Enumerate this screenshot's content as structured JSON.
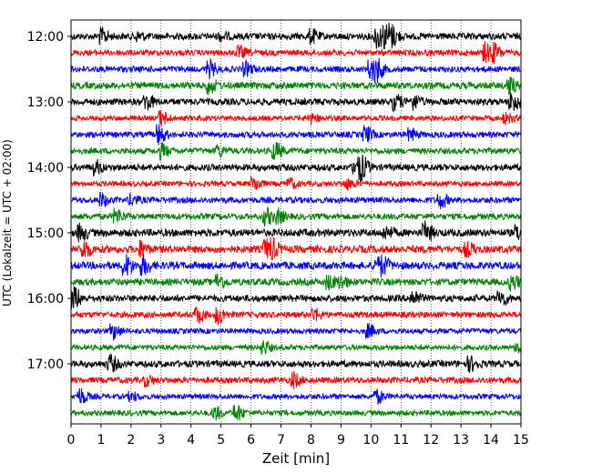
{
  "chart_data": {
    "type": "line",
    "subtype": "helicorder",
    "xlabel": "Zeit  [min]",
    "ylabel": "UTC (Lokalzeit = UTC + 02:00)",
    "xlim": [
      0,
      15
    ],
    "x_ticks": [
      "0",
      "1",
      "2",
      "3",
      "4",
      "5",
      "6",
      "7",
      "8",
      "9",
      "10",
      "11",
      "12",
      "13",
      "14",
      "15"
    ],
    "y_tick_labels": [
      "12:00",
      "13:00",
      "14:00",
      "15:00",
      "16:00",
      "17:00"
    ],
    "grid": "vertical dotted lines at each minute",
    "trace_colors": [
      "#000000",
      "#ff0000",
      "#0000ff",
      "#008000"
    ],
    "traces": [
      {
        "start": "12:00",
        "color": "#000000",
        "amp": 0.45,
        "events": [
          [
            1.0,
            0.9
          ],
          [
            2.2,
            0.5
          ],
          [
            5.0,
            0.4
          ],
          [
            8.0,
            0.8
          ],
          [
            10.2,
            1.4
          ],
          [
            10.5,
            1.1
          ],
          [
            10.7,
            0.9
          ]
        ]
      },
      {
        "start": "12:15",
        "color": "#ff0000",
        "amp": 0.4,
        "events": [
          [
            5.6,
            0.7
          ],
          [
            13.8,
            1.2
          ],
          [
            14.1,
            0.9
          ]
        ]
      },
      {
        "start": "12:30",
        "color": "#0000ff",
        "amp": 0.4,
        "events": [
          [
            4.6,
            1.0
          ],
          [
            5.8,
            0.8
          ],
          [
            10.0,
            1.3
          ],
          [
            10.2,
            1.0
          ]
        ]
      },
      {
        "start": "12:45",
        "color": "#008000",
        "amp": 0.45,
        "events": [
          [
            4.6,
            0.9
          ],
          [
            14.6,
            1.0
          ]
        ]
      },
      {
        "start": "13:00",
        "color": "#000000",
        "amp": 0.45,
        "events": [
          [
            2.5,
            1.0
          ],
          [
            10.8,
            0.9
          ],
          [
            11.4,
            0.9
          ],
          [
            14.7,
            1.2
          ]
        ]
      },
      {
        "start": "13:15",
        "color": "#ff0000",
        "amp": 0.35,
        "events": [
          [
            3.0,
            0.9
          ],
          [
            8.0,
            0.6
          ],
          [
            14.5,
            0.6
          ]
        ]
      },
      {
        "start": "13:30",
        "color": "#0000ff",
        "amp": 0.4,
        "events": [
          [
            2.9,
            1.2
          ],
          [
            9.8,
            1.0
          ],
          [
            11.3,
            0.7
          ]
        ]
      },
      {
        "start": "13:45",
        "color": "#008000",
        "amp": 0.4,
        "events": [
          [
            3.0,
            0.9
          ],
          [
            4.9,
            0.7
          ],
          [
            6.8,
            1.0
          ]
        ]
      },
      {
        "start": "14:00",
        "color": "#000000",
        "amp": 0.45,
        "events": [
          [
            0.8,
            0.8
          ],
          [
            9.5,
            1.3
          ],
          [
            9.7,
            0.9
          ]
        ]
      },
      {
        "start": "14:15",
        "color": "#ff0000",
        "amp": 0.35,
        "events": [
          [
            6.1,
            0.8
          ],
          [
            7.3,
            0.6
          ],
          [
            9.2,
            0.6
          ]
        ]
      },
      {
        "start": "14:30",
        "color": "#0000ff",
        "amp": 0.4,
        "events": [
          [
            1.0,
            0.8
          ],
          [
            2.0,
            0.6
          ],
          [
            12.3,
            0.9
          ]
        ]
      },
      {
        "start": "14:45",
        "color": "#008000",
        "amp": 0.4,
        "events": [
          [
            1.5,
            0.9
          ],
          [
            6.5,
            1.0
          ],
          [
            6.9,
            0.8
          ]
        ]
      },
      {
        "start": "15:00",
        "color": "#000000",
        "amp": 0.5,
        "events": [
          [
            0.3,
            0.9
          ],
          [
            10.5,
            0.7
          ],
          [
            11.8,
            1.2
          ],
          [
            14.9,
            0.9
          ]
        ]
      },
      {
        "start": "15:15",
        "color": "#ff0000",
        "amp": 0.5,
        "events": [
          [
            0.4,
            1.1
          ],
          [
            2.3,
            0.9
          ],
          [
            6.5,
            1.1
          ],
          [
            6.7,
            0.8
          ],
          [
            13.2,
            0.7
          ]
        ]
      },
      {
        "start": "15:30",
        "color": "#0000ff",
        "amp": 0.5,
        "events": [
          [
            1.8,
            1.3
          ],
          [
            2.4,
            1.1
          ],
          [
            10.2,
            0.9
          ],
          [
            10.4,
            0.7
          ]
        ]
      },
      {
        "start": "15:45",
        "color": "#008000",
        "amp": 0.45,
        "events": [
          [
            4.9,
            0.9
          ],
          [
            8.6,
            0.8
          ],
          [
            9.0,
            0.7
          ],
          [
            14.7,
            0.9
          ]
        ]
      },
      {
        "start": "16:00",
        "color": "#000000",
        "amp": 0.45,
        "events": [
          [
            0.1,
            1.3
          ],
          [
            11.4,
            0.9
          ],
          [
            14.3,
            0.9
          ]
        ]
      },
      {
        "start": "16:15",
        "color": "#ff0000",
        "amp": 0.4,
        "events": [
          [
            4.2,
            1.0
          ],
          [
            4.9,
            1.1
          ],
          [
            8.1,
            0.7
          ]
        ]
      },
      {
        "start": "16:30",
        "color": "#0000ff",
        "amp": 0.35,
        "events": [
          [
            1.4,
            0.9
          ],
          [
            9.9,
            0.8
          ]
        ]
      },
      {
        "start": "16:45",
        "color": "#008000",
        "amp": 0.35,
        "events": [
          [
            6.4,
            0.8
          ],
          [
            14.9,
            0.8
          ]
        ]
      },
      {
        "start": "17:00",
        "color": "#000000",
        "amp": 0.45,
        "events": [
          [
            1.3,
            1.0
          ],
          [
            13.3,
            0.8
          ]
        ]
      },
      {
        "start": "17:15",
        "color": "#ff0000",
        "amp": 0.4,
        "events": [
          [
            2.5,
            0.6
          ],
          [
            7.4,
            0.9
          ]
        ]
      },
      {
        "start": "17:30",
        "color": "#0000ff",
        "amp": 0.35,
        "events": [
          [
            0.3,
            1.0
          ],
          [
            2.0,
            0.5
          ],
          [
            10.2,
            0.8
          ]
        ]
      },
      {
        "start": "17:45",
        "color": "#008000",
        "amp": 0.35,
        "events": [
          [
            4.8,
            0.8
          ],
          [
            5.5,
            1.0
          ]
        ]
      }
    ]
  }
}
